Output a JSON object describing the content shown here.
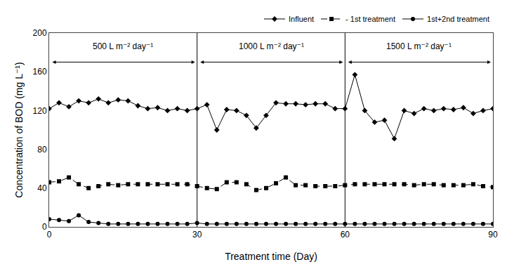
{
  "chart_data": {
    "type": "line",
    "xlabel": "Treatment time (Day)",
    "ylabel": "Concentration of BOD (mg L⁻¹)",
    "xlim": [
      0,
      90
    ],
    "ylim": [
      0,
      200
    ],
    "xticks": [
      0,
      30,
      60,
      90
    ],
    "yticks": [
      0,
      40,
      80,
      120,
      160,
      200
    ],
    "grid": false,
    "legend": "upper right",
    "x": [
      0,
      2,
      4,
      6,
      8,
      10,
      12,
      14,
      16,
      18,
      20,
      22,
      24,
      26,
      28,
      30,
      32,
      34,
      36,
      38,
      40,
      42,
      44,
      46,
      48,
      50,
      52,
      54,
      56,
      58,
      60,
      62,
      64,
      66,
      68,
      70,
      72,
      74,
      76,
      78,
      80,
      82,
      84,
      86,
      88,
      90
    ],
    "series": [
      {
        "name": "Influent",
        "color": "#000000",
        "marker": "diamond",
        "line_style": "solid",
        "values": [
          122,
          128,
          124,
          130,
          128,
          132,
          128,
          131,
          130,
          125,
          122,
          123,
          120,
          122,
          120,
          122,
          126,
          100,
          121,
          120,
          115,
          102,
          115,
          128,
          127,
          127,
          126,
          127,
          127,
          122,
          122,
          157,
          120,
          108,
          110,
          91,
          120,
          117,
          122,
          120,
          122,
          121,
          123,
          117,
          120,
          122
        ]
      },
      {
        "name": "- 1st treatment",
        "color": "#000000",
        "marker": "square",
        "line_style": "dash",
        "values": [
          46,
          47,
          51,
          44,
          40,
          42,
          44,
          43,
          44,
          44,
          44,
          44,
          44,
          44,
          44,
          42,
          40,
          39,
          46,
          46,
          44,
          38,
          40,
          45,
          51,
          43,
          43,
          42,
          42,
          42,
          43,
          44,
          44,
          44,
          44,
          44,
          44,
          43,
          44,
          44,
          43,
          43,
          43,
          44,
          42,
          41
        ]
      },
      {
        "name": "1st+2nd treatment",
        "color": "#000000",
        "marker": "circle",
        "line_style": "solid",
        "values": [
          8,
          7,
          6,
          12,
          5,
          4,
          3,
          3,
          3,
          3,
          3,
          3,
          3,
          3,
          3,
          4,
          3,
          3,
          3,
          3,
          3,
          3,
          3,
          3,
          3,
          3,
          3,
          3,
          3,
          3,
          3,
          3,
          3,
          3,
          3,
          3,
          3,
          3,
          3,
          3,
          3,
          3,
          3,
          3,
          3,
          3
        ]
      }
    ],
    "vlines": [
      30,
      60
    ],
    "annotations": [
      {
        "text": "500 L m⁻² day⁻¹",
        "x_range": [
          0,
          30
        ],
        "y": 180,
        "arrow_y": 170
      },
      {
        "text": "1000 L m⁻² day⁻¹",
        "x_range": [
          30,
          60
        ],
        "y": 180,
        "arrow_y": 170
      },
      {
        "text": "1500 L m⁻² day⁻¹",
        "x_range": [
          60,
          90
        ],
        "y": 180,
        "arrow_y": 170
      }
    ]
  }
}
